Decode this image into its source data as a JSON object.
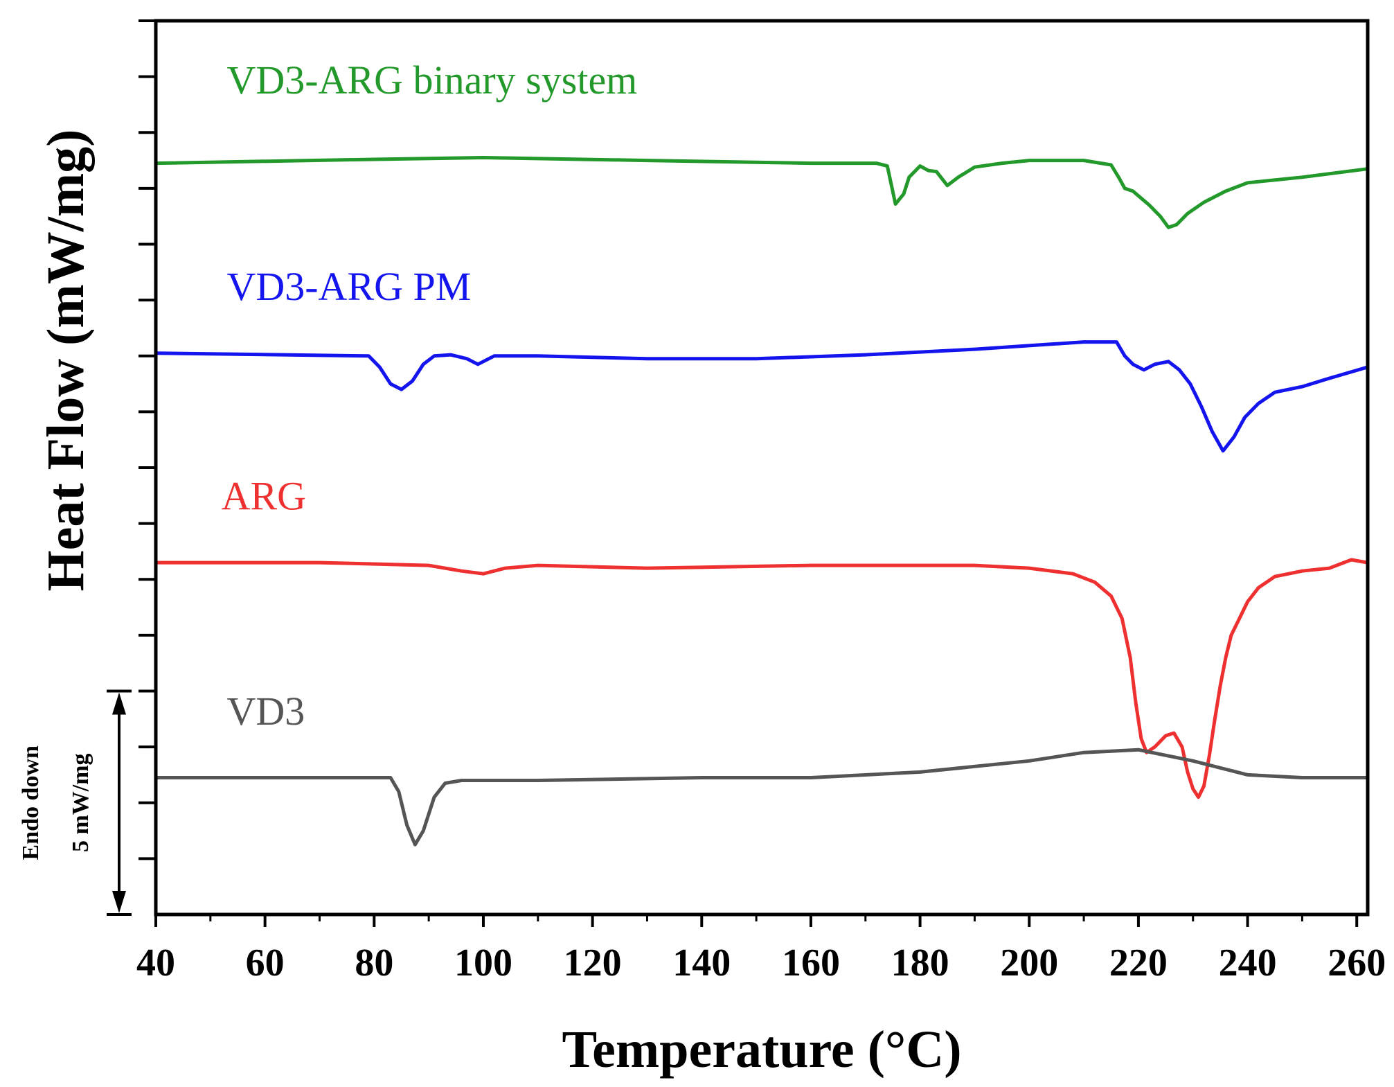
{
  "chart_data": {
    "type": "line",
    "title": "",
    "xlabel": "Temperature (°C)",
    "ylabel": "Heat Flow (mW/mg)",
    "xlim": [
      40,
      262
    ],
    "ylim": [
      0,
      16
    ],
    "x_ticks": [
      40,
      60,
      80,
      100,
      120,
      140,
      160,
      180,
      200,
      220,
      240,
      260
    ],
    "y_tick_values": [
      1,
      2,
      3,
      4,
      5,
      6,
      7,
      8,
      9,
      10,
      11,
      12,
      13,
      14,
      15,
      16
    ],
    "y_tick_labels_shown": false,
    "grid": false,
    "scale_bar": {
      "line1": "Endo down",
      "line2": "5 mW/mg",
      "from": 0,
      "to": 4
    },
    "series": [
      {
        "name": "VD3-ARG binary system",
        "color": "#22992a",
        "x": [
          40,
          80,
          100,
          130,
          160,
          172,
          174,
          175.5,
          177,
          178,
          180,
          181.5,
          183,
          185,
          187,
          190,
          195,
          200,
          210,
          215,
          216.5,
          217.5,
          219,
          222,
          224,
          225.5,
          227,
          229,
          232,
          236,
          240,
          250,
          262
        ],
        "y": [
          13.45,
          13.52,
          13.55,
          13.5,
          13.45,
          13.45,
          13.4,
          12.72,
          12.9,
          13.2,
          13.4,
          13.32,
          13.3,
          13.05,
          13.2,
          13.38,
          13.45,
          13.5,
          13.5,
          13.42,
          13.18,
          13.0,
          12.95,
          12.7,
          12.5,
          12.3,
          12.35,
          12.55,
          12.75,
          12.95,
          13.1,
          13.2,
          13.35
        ]
      },
      {
        "name": "VD3-ARG PM",
        "color": "#1414ee",
        "x": [
          40,
          79,
          81,
          83,
          85,
          87,
          89,
          91,
          94,
          97,
          99,
          102,
          110,
          130,
          150,
          170,
          190,
          210,
          216,
          217.5,
          219,
          221,
          223,
          225.5,
          227.5,
          229.5,
          231.5,
          233.5,
          235.5,
          237.5,
          239.5,
          242,
          245,
          250,
          255,
          262
        ],
        "y": [
          10.05,
          10.0,
          9.8,
          9.5,
          9.4,
          9.55,
          9.85,
          10.0,
          10.02,
          9.95,
          9.85,
          10.0,
          10.0,
          9.95,
          9.95,
          10.02,
          10.12,
          10.25,
          10.25,
          10.0,
          9.85,
          9.75,
          9.85,
          9.9,
          9.75,
          9.5,
          9.1,
          8.65,
          8.3,
          8.55,
          8.9,
          9.15,
          9.35,
          9.45,
          9.6,
          9.8
        ]
      },
      {
        "name": "ARG",
        "color": "#ee3030",
        "x": [
          40,
          70,
          90,
          96,
          100,
          104,
          110,
          130,
          160,
          190,
          200,
          208,
          212,
          215,
          217,
          218.5,
          219.5,
          220.5,
          221.5,
          223,
          225,
          226.5,
          228,
          229,
          230,
          231,
          232,
          233,
          234,
          235,
          236,
          237,
          238.5,
          240,
          242,
          245,
          250,
          255,
          259,
          262
        ],
        "y": [
          6.3,
          6.3,
          6.25,
          6.15,
          6.1,
          6.2,
          6.25,
          6.2,
          6.25,
          6.25,
          6.2,
          6.1,
          5.95,
          5.7,
          5.3,
          4.6,
          3.8,
          3.15,
          2.9,
          3.0,
          3.2,
          3.25,
          3.0,
          2.55,
          2.25,
          2.1,
          2.3,
          2.85,
          3.5,
          4.1,
          4.6,
          5.0,
          5.3,
          5.6,
          5.85,
          6.05,
          6.15,
          6.2,
          6.35,
          6.3
        ]
      },
      {
        "name": "VD3",
        "color": "#555555",
        "x": [
          40,
          83,
          84.5,
          86,
          87.5,
          89,
          91,
          93,
          96,
          110,
          140,
          160,
          180,
          200,
          210,
          220,
          230,
          240,
          250,
          262
        ],
        "y": [
          2.45,
          2.45,
          2.2,
          1.6,
          1.25,
          1.5,
          2.1,
          2.35,
          2.4,
          2.4,
          2.45,
          2.45,
          2.55,
          2.75,
          2.9,
          2.95,
          2.75,
          2.5,
          2.45,
          2.45
        ]
      }
    ],
    "labels": [
      {
        "text": "VD3-ARG binary system",
        "color": "#22992a",
        "x": 53,
        "y": 14.7
      },
      {
        "text": "VD3-ARG PM",
        "color": "#1414ee",
        "x": 53,
        "y": 11.0
      },
      {
        "text": "ARG",
        "color": "#ee3030",
        "x": 52,
        "y": 7.25
      },
      {
        "text": "VD3",
        "color": "#555555",
        "x": 53,
        "y": 3.4
      }
    ]
  }
}
